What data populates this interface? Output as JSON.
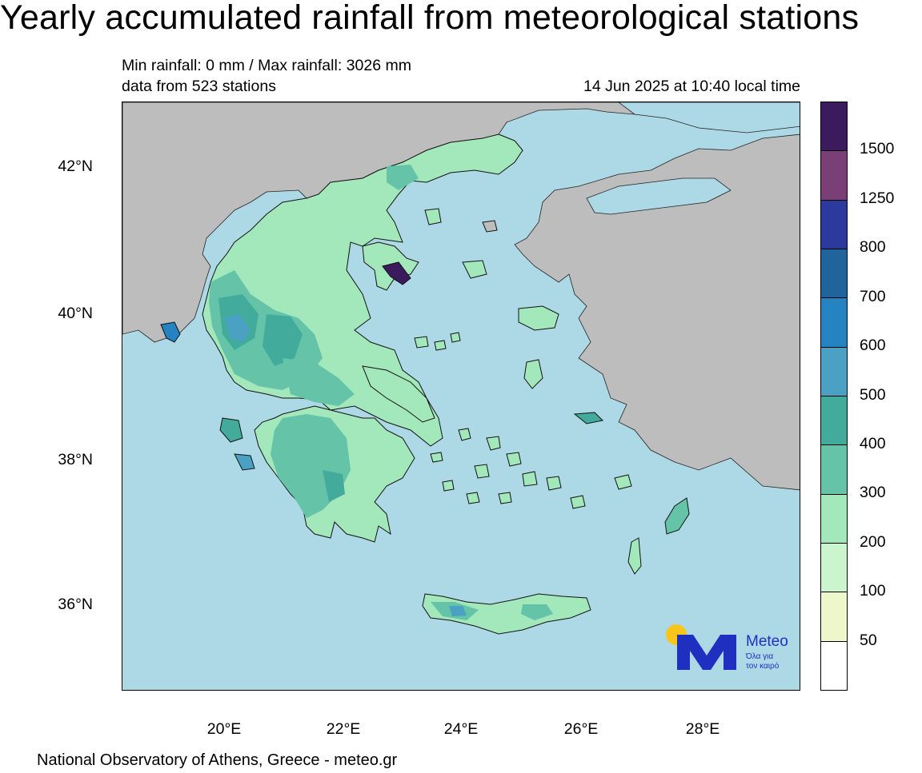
{
  "header": {
    "title": "Yearly accumulated rainfall from meteorological stations",
    "line1": "Min rainfall: 0 mm / Max rainfall: 3026 mm",
    "line2": "data from 523 stations",
    "date": "14 Jun 2025 at 10:40 local time"
  },
  "map": {
    "lat_labels": [
      "42°N",
      "40°N",
      "38°N",
      "36°N"
    ],
    "lon_labels": [
      "20°E",
      "22°E",
      "24°E",
      "26°E",
      "28°E"
    ],
    "sea_color": "#add8e6",
    "other_land_color": "#bdbdbd"
  },
  "legend": {
    "levels": [
      "1500",
      "1250",
      "800",
      "700",
      "600",
      "500",
      "400",
      "300",
      "200",
      "100",
      "50"
    ],
    "colors": [
      "#3b1a5e",
      "#7b3f78",
      "#2c3a9e",
      "#21649c",
      "#2683c1",
      "#4aa1c4",
      "#43ab9b",
      "#65c3a8",
      "#a3e8bb",
      "#cbf5cc",
      "#eef7c9",
      "#ffffff"
    ]
  },
  "logo": {
    "brand": "Meteo",
    "slogan1": "Όλα για",
    "slogan2": "τον καιρό",
    "navy": "#1f2fbf",
    "sun": "#f9c51b"
  },
  "footer": "National Observatory of Athens, Greece - meteo.gr"
}
